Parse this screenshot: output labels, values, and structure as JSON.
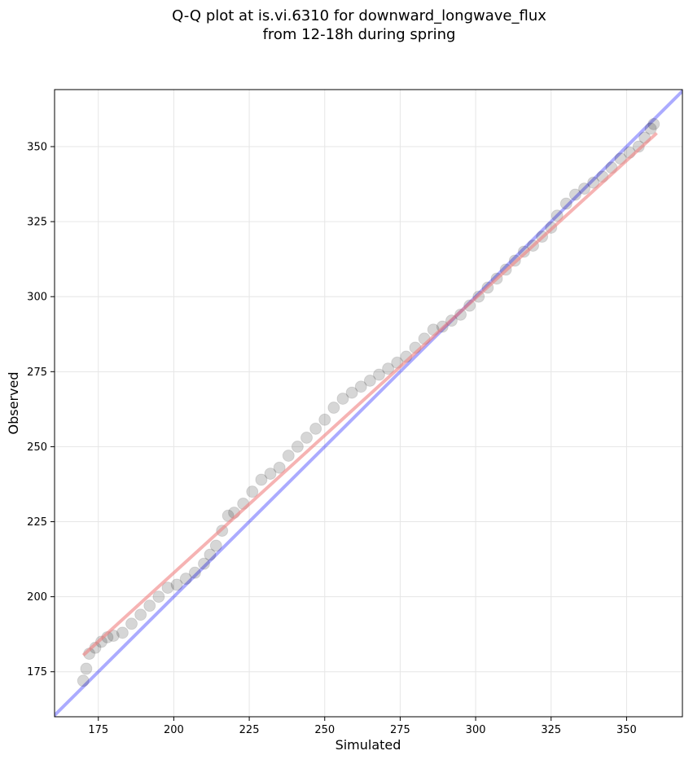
{
  "chart_data": {
    "type": "scatter",
    "title_lines": [
      "Q-Q plot at is.vi.6310 for downward_longwave_flux",
      "from 12-18h during spring"
    ],
    "xlabel": "Simulated",
    "ylabel": "Observed",
    "xlim": [
      160.5,
      368.5
    ],
    "ylim": [
      160,
      369
    ],
    "xticks": [
      175,
      200,
      225,
      250,
      275,
      300,
      325,
      350
    ],
    "yticks": [
      175,
      200,
      225,
      250,
      275,
      300,
      325,
      350
    ],
    "grid": true,
    "points": {
      "color": "#000000",
      "x": [
        170,
        171,
        172,
        174,
        176,
        178,
        180,
        183,
        186,
        189,
        192,
        195,
        198,
        201,
        204,
        207,
        210,
        212,
        214,
        216,
        218,
        220,
        223,
        226,
        229,
        232,
        235,
        238,
        241,
        244,
        247,
        250,
        253,
        256,
        259,
        262,
        265,
        268,
        271,
        274,
        277,
        280,
        283,
        286,
        289,
        292,
        295,
        298,
        301,
        304,
        307,
        310,
        313,
        316,
        319,
        322,
        325,
        327,
        330,
        333,
        336,
        339,
        342,
        345,
        348,
        351,
        354,
        356,
        358,
        359
      ],
      "y": [
        172,
        176,
        181,
        183,
        185,
        186.5,
        187,
        188,
        191,
        194,
        197,
        200,
        203,
        204,
        206,
        208,
        211,
        214,
        217,
        222,
        227,
        228,
        231,
        235,
        239,
        241,
        243,
        247,
        250,
        253,
        256,
        259,
        263,
        266,
        268,
        270,
        272,
        274,
        276,
        278,
        280,
        283,
        286,
        289,
        290,
        292,
        294,
        297,
        300,
        303,
        306,
        309,
        312,
        315,
        317,
        320,
        323,
        327,
        331,
        334,
        336,
        338,
        340,
        343,
        346,
        348,
        350,
        353,
        356,
        357.5
      ]
    },
    "fit_line": {
      "color": "#f08080",
      "x": [
        170,
        360
      ],
      "y": [
        180.5,
        354.5
      ]
    },
    "identity_line": {
      "color": "#0000ff",
      "x": [
        160,
        370
      ],
      "y": [
        160,
        370
      ]
    }
  }
}
